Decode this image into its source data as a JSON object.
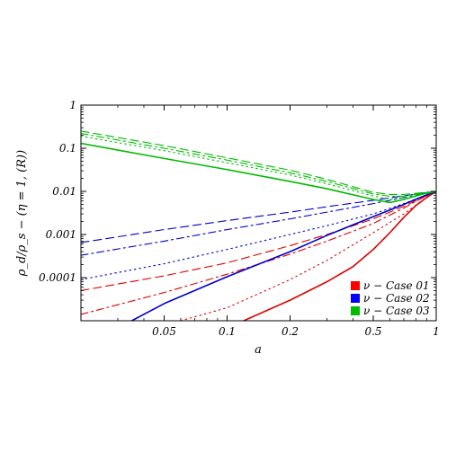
{
  "chart_data": {
    "type": "line",
    "title": "",
    "xlabel": "a",
    "ylabel": "ρ_d/ρ_s − (η = 1, (R))",
    "x_scale": "log",
    "y_scale": "log",
    "xlim": [
      0.02,
      1
    ],
    "ylim": [
      1e-05,
      1
    ],
    "x_ticks": [
      0.05,
      0.1,
      0.2,
      0.5,
      1
    ],
    "x_tick_labels": [
      "0.05",
      "0.1",
      "0.2",
      "0.5",
      "1"
    ],
    "y_ticks": [
      0.0001,
      0.001,
      0.01,
      0.1,
      1
    ],
    "y_tick_labels": [
      "0.0001",
      "0.001",
      "0.01",
      "0.1",
      "1"
    ],
    "grid": false,
    "legend_position": "bottom-right",
    "legend": [
      {
        "label": "ν − Case 01",
        "color": "#ff0000"
      },
      {
        "label": "ν − Case 02",
        "color": "#0000ff"
      },
      {
        "label": "ν − Case 03",
        "color": "#00bb00"
      }
    ],
    "series": [
      {
        "group": 0,
        "color": "#e00000",
        "dash": "solid",
        "x": [
          0.12,
          0.2,
          0.3,
          0.4,
          0.5,
          0.6,
          0.7,
          0.8,
          0.9,
          1.0
        ],
        "y": [
          1e-05,
          3e-05,
          8e-05,
          0.00018,
          0.00045,
          0.0011,
          0.0025,
          0.0047,
          0.0072,
          0.01
        ]
      },
      {
        "group": 0,
        "color": "#e00000",
        "dash": "dot",
        "x": [
          0.06,
          0.1,
          0.2,
          0.3,
          0.5,
          0.7,
          0.85,
          1.0
        ],
        "y": [
          1e-05,
          2e-05,
          9e-05,
          0.00025,
          0.0011,
          0.003,
          0.006,
          0.01
        ]
      },
      {
        "group": 0,
        "color": "#e00000",
        "dash": "dashdot",
        "x": [
          0.02,
          0.05,
          0.1,
          0.2,
          0.3,
          0.5,
          0.7,
          0.85,
          1.0
        ],
        "y": [
          1.4e-05,
          4.5e-05,
          0.00012,
          0.00035,
          0.0007,
          0.0018,
          0.0041,
          0.0069,
          0.01
        ]
      },
      {
        "group": 0,
        "color": "#e00000",
        "dash": "dash",
        "x": [
          0.02,
          0.05,
          0.1,
          0.2,
          0.3,
          0.5,
          0.7,
          0.85,
          1.0
        ],
        "y": [
          5e-05,
          0.00011,
          0.00022,
          0.00055,
          0.001,
          0.0023,
          0.0045,
          0.007,
          0.01
        ]
      },
      {
        "group": 1,
        "color": "#0000cc",
        "dash": "solid",
        "x": [
          0.035,
          0.05,
          0.1,
          0.2,
          0.3,
          0.5,
          0.7,
          0.85,
          1.0
        ],
        "y": [
          1e-05,
          2.5e-05,
          0.000105,
          0.0004,
          0.00095,
          0.0026,
          0.005,
          0.0074,
          0.01
        ]
      },
      {
        "group": 1,
        "color": "#0000cc",
        "dash": "dot",
        "x": [
          0.02,
          0.05,
          0.1,
          0.2,
          0.3,
          0.5,
          0.7,
          0.85,
          1.0
        ],
        "y": [
          9e-05,
          0.00021,
          0.00045,
          0.001,
          0.0016,
          0.003,
          0.0052,
          0.0075,
          0.01
        ]
      },
      {
        "group": 1,
        "color": "#0000cc",
        "dash": "dashdot",
        "x": [
          0.02,
          0.05,
          0.1,
          0.2,
          0.3,
          0.5,
          0.7,
          0.85,
          1.0
        ],
        "y": [
          0.00033,
          0.0007,
          0.0013,
          0.0023,
          0.0033,
          0.0052,
          0.0072,
          0.0086,
          0.01
        ]
      },
      {
        "group": 1,
        "color": "#0000cc",
        "dash": "dash",
        "x": [
          0.02,
          0.05,
          0.1,
          0.2,
          0.3,
          0.5,
          0.7,
          0.85,
          1.0
        ],
        "y": [
          0.00065,
          0.0013,
          0.0021,
          0.0033,
          0.0044,
          0.0062,
          0.0079,
          0.009,
          0.01
        ]
      },
      {
        "group": 2,
        "color": "#00bb00",
        "dash": "solid",
        "x": [
          0.02,
          0.05,
          0.1,
          0.2,
          0.3,
          0.5,
          0.6,
          0.7,
          0.85,
          1.0
        ],
        "y": [
          0.13,
          0.058,
          0.032,
          0.017,
          0.0115,
          0.0065,
          0.0055,
          0.0065,
          0.0085,
          0.01
        ]
      },
      {
        "group": 2,
        "color": "#00bb00",
        "dash": "dot",
        "x": [
          0.02,
          0.05,
          0.1,
          0.2,
          0.3,
          0.5,
          0.6,
          0.7,
          0.85,
          1.0
        ],
        "y": [
          0.19,
          0.088,
          0.046,
          0.024,
          0.015,
          0.0078,
          0.0066,
          0.0072,
          0.0088,
          0.01
        ]
      },
      {
        "group": 2,
        "color": "#00bb00",
        "dash": "dashdot",
        "x": [
          0.02,
          0.05,
          0.1,
          0.2,
          0.3,
          0.5,
          0.6,
          0.7,
          0.85,
          1.0
        ],
        "y": [
          0.22,
          0.1,
          0.053,
          0.027,
          0.017,
          0.0087,
          0.0077,
          0.0078,
          0.009,
          0.01
        ]
      },
      {
        "group": 2,
        "color": "#00bb00",
        "dash": "dash",
        "x": [
          0.02,
          0.05,
          0.1,
          0.2,
          0.3,
          0.5,
          0.6,
          0.7,
          0.85,
          1.0
        ],
        "y": [
          0.25,
          0.115,
          0.06,
          0.031,
          0.019,
          0.0095,
          0.0085,
          0.0085,
          0.0093,
          0.01
        ]
      }
    ]
  }
}
